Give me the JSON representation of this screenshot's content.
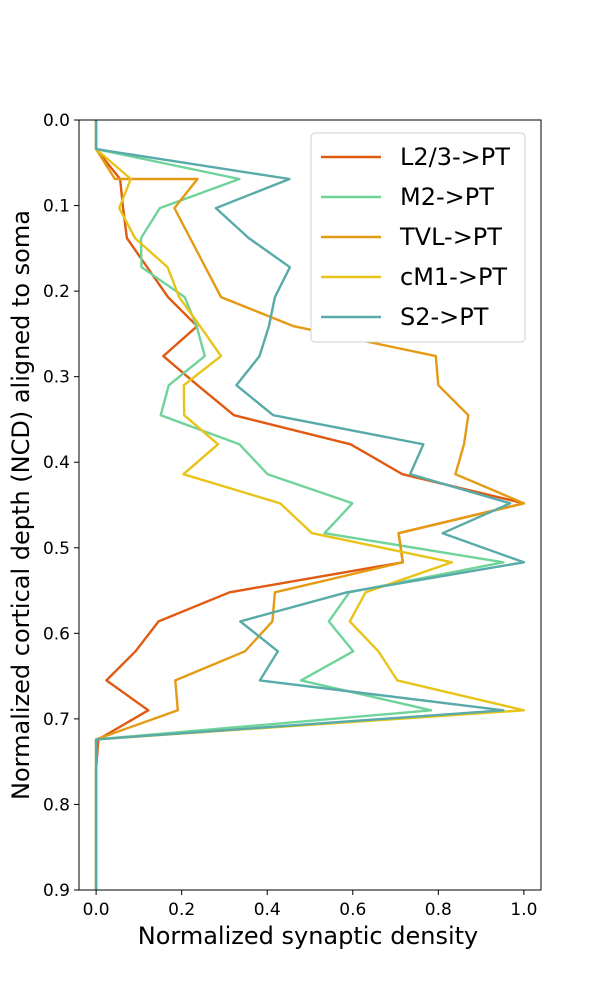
{
  "chart_data": {
    "type": "line",
    "xlabel": "Normalized synaptic density",
    "ylabel": "Normalized cortical depth (NCD) aligned to soma",
    "xlim": [
      -0.04,
      1.04
    ],
    "ylim": [
      0.9,
      0.0
    ],
    "y_inverted": true,
    "x_ticks": [
      "0.0",
      "0.2",
      "0.4",
      "0.6",
      "0.8",
      "1.0"
    ],
    "y_ticks": [
      "0.0",
      "0.1",
      "0.2",
      "0.3",
      "0.4",
      "0.5",
      "0.6",
      "0.7",
      "0.8",
      "0.9"
    ],
    "grid": false,
    "legend_position": "top-right",
    "series": [
      {
        "name": "L2/3->PT",
        "color": "#e05a12",
        "points": [
          [
            0.0,
            0.0
          ],
          [
            0.0,
            0.034
          ],
          [
            0.056,
            0.069
          ],
          [
            0.063,
            0.103
          ],
          [
            0.072,
            0.138
          ],
          [
            0.168,
            0.207
          ],
          [
            0.236,
            0.241
          ],
          [
            0.157,
            0.276
          ],
          [
            0.237,
            0.31
          ],
          [
            0.322,
            0.345
          ],
          [
            0.595,
            0.379
          ],
          [
            0.716,
            0.414
          ],
          [
            1.0,
            0.448
          ],
          [
            0.707,
            0.483
          ],
          [
            0.717,
            0.517
          ],
          [
            0.312,
            0.552
          ],
          [
            0.146,
            0.586
          ],
          [
            0.092,
            0.621
          ],
          [
            0.024,
            0.655
          ],
          [
            0.122,
            0.69
          ],
          [
            0.005,
            0.724
          ],
          [
            0.0,
            0.759
          ],
          [
            0.0,
            0.9
          ]
        ]
      },
      {
        "name": "M2->PT",
        "color": "#6fd39a",
        "points": [
          [
            0.0,
            0.0
          ],
          [
            0.0,
            0.034
          ],
          [
            0.335,
            0.069
          ],
          [
            0.149,
            0.103
          ],
          [
            0.105,
            0.138
          ],
          [
            0.106,
            0.172
          ],
          [
            0.207,
            0.207
          ],
          [
            0.235,
            0.241
          ],
          [
            0.254,
            0.276
          ],
          [
            0.17,
            0.31
          ],
          [
            0.151,
            0.345
          ],
          [
            0.335,
            0.379
          ],
          [
            0.401,
            0.414
          ],
          [
            0.599,
            0.448
          ],
          [
            0.534,
            0.483
          ],
          [
            0.952,
            0.517
          ],
          [
            0.592,
            0.552
          ],
          [
            0.544,
            0.586
          ],
          [
            0.601,
            0.621
          ],
          [
            0.479,
            0.655
          ],
          [
            0.783,
            0.69
          ],
          [
            0.0,
            0.724
          ],
          [
            0.0,
            0.9
          ]
        ]
      },
      {
        "name": "TVL->PT",
        "color": "#e59a14",
        "points": [
          [
            0.0,
            0.0
          ],
          [
            0.0,
            0.034
          ],
          [
            0.044,
            0.069
          ],
          [
            0.237,
            0.069
          ],
          [
            0.183,
            0.103
          ],
          [
            0.292,
            0.207
          ],
          [
            0.462,
            0.241
          ],
          [
            0.794,
            0.276
          ],
          [
            0.8,
            0.31
          ],
          [
            0.87,
            0.345
          ],
          [
            0.86,
            0.379
          ],
          [
            0.84,
            0.414
          ],
          [
            1.0,
            0.448
          ],
          [
            0.707,
            0.483
          ],
          [
            0.717,
            0.517
          ],
          [
            0.418,
            0.552
          ],
          [
            0.412,
            0.586
          ],
          [
            0.348,
            0.621
          ],
          [
            0.185,
            0.655
          ],
          [
            0.191,
            0.69
          ],
          [
            0.0,
            0.724
          ],
          [
            0.0,
            0.9
          ]
        ]
      },
      {
        "name": "cM1->PT",
        "color": "#e8c41a",
        "points": [
          [
            0.0,
            0.0
          ],
          [
            0.0,
            0.034
          ],
          [
            0.081,
            0.069
          ],
          [
            0.054,
            0.103
          ],
          [
            0.091,
            0.138
          ],
          [
            0.167,
            0.172
          ],
          [
            0.194,
            0.207
          ],
          [
            0.243,
            0.241
          ],
          [
            0.292,
            0.276
          ],
          [
            0.205,
            0.31
          ],
          [
            0.206,
            0.345
          ],
          [
            0.285,
            0.379
          ],
          [
            0.204,
            0.414
          ],
          [
            0.43,
            0.448
          ],
          [
            0.505,
            0.483
          ],
          [
            0.832,
            0.517
          ],
          [
            0.63,
            0.552
          ],
          [
            0.593,
            0.586
          ],
          [
            0.66,
            0.621
          ],
          [
            0.704,
            0.655
          ],
          [
            1.0,
            0.69
          ],
          [
            0.0,
            0.724
          ],
          [
            0.0,
            0.9
          ]
        ]
      },
      {
        "name": "S2->PT",
        "color": "#58aba8",
        "points": [
          [
            0.0,
            0.0
          ],
          [
            0.0,
            0.034
          ],
          [
            0.452,
            0.069
          ],
          [
            0.28,
            0.103
          ],
          [
            0.357,
            0.138
          ],
          [
            0.453,
            0.172
          ],
          [
            0.418,
            0.207
          ],
          [
            0.404,
            0.241
          ],
          [
            0.382,
            0.276
          ],
          [
            0.328,
            0.31
          ],
          [
            0.414,
            0.345
          ],
          [
            0.765,
            0.379
          ],
          [
            0.734,
            0.414
          ],
          [
            0.968,
            0.448
          ],
          [
            0.81,
            0.483
          ],
          [
            1.0,
            0.517
          ],
          [
            0.586,
            0.552
          ],
          [
            0.337,
            0.586
          ],
          [
            0.425,
            0.621
          ],
          [
            0.383,
            0.655
          ],
          [
            0.952,
            0.69
          ],
          [
            0.0,
            0.724
          ],
          [
            0.0,
            0.9
          ]
        ]
      }
    ]
  }
}
